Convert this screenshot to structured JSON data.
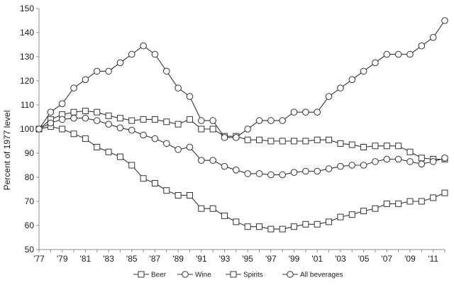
{
  "chart_data": {
    "type": "line",
    "ylabel": "Percent of 1977 level",
    "xlabel": "",
    "ylim": [
      50,
      150
    ],
    "yticks": [
      50,
      60,
      70,
      80,
      90,
      100,
      110,
      120,
      130,
      140,
      150
    ],
    "x": [
      1977,
      1978,
      1979,
      1980,
      1981,
      1982,
      1983,
      1984,
      1985,
      1986,
      1987,
      1988,
      1989,
      1990,
      1991,
      1992,
      1993,
      1994,
      1995,
      1996,
      1997,
      1998,
      1999,
      2000,
      2001,
      2002,
      2003,
      2004,
      2005,
      2006,
      2007,
      2008,
      2009,
      2010,
      2011,
      2012
    ],
    "xtick_labels": [
      "'77",
      "'79",
      "'81",
      "'83",
      "'85",
      "'87",
      "'89",
      "'91",
      "'93",
      "'95",
      "'97",
      "'99",
      "'01",
      "'03",
      "'05",
      "'07",
      "'09",
      "'11"
    ],
    "grid": false,
    "legend_position": "bottom",
    "series": [
      {
        "name": "Beer",
        "marker": "square",
        "values": [
          100,
          104,
          106,
          107,
          107.5,
          107,
          105.5,
          104.5,
          103.5,
          104,
          104,
          103,
          102,
          104,
          100,
          100,
          97,
          97,
          95.5,
          95.5,
          95,
          95,
          95,
          95,
          95.5,
          95.5,
          94,
          93.5,
          92.5,
          93,
          93,
          93,
          90.5,
          88,
          87.5,
          87.5
        ]
      },
      {
        "name": "Wine",
        "marker": "circle",
        "values": [
          100,
          107,
          110.5,
          117,
          120.5,
          124,
          124,
          127.5,
          131,
          134.5,
          131,
          124,
          117,
          113.5,
          103.5,
          103.5,
          96.5,
          96.5,
          100,
          103.5,
          103.5,
          103.5,
          107,
          107,
          107,
          113.5,
          117,
          120.5,
          124,
          127.5,
          131,
          131,
          131,
          134.5,
          138,
          145
        ]
      },
      {
        "name": "Spirits",
        "marker": "square",
        "values": [
          100,
          101,
          100,
          98,
          96,
          92.5,
          90.5,
          88.5,
          85,
          79.5,
          77.5,
          74.5,
          72.5,
          72.5,
          67,
          67,
          64,
          61.5,
          59.5,
          59.5,
          58.5,
          58.5,
          59.5,
          60.5,
          60.5,
          61.5,
          63.5,
          64.5,
          66,
          67,
          69,
          69,
          70,
          70,
          71.5,
          73.5
        ]
      },
      {
        "name": "All beverages",
        "marker": "circle",
        "values": [
          100,
          102.5,
          104,
          104.5,
          104.5,
          103.5,
          102,
          100.5,
          99.5,
          97.5,
          96,
          94,
          91.5,
          92.5,
          87,
          87,
          84.5,
          83,
          81.5,
          81.5,
          81,
          81,
          82,
          82.5,
          82.5,
          83.5,
          84.5,
          85,
          85,
          86.5,
          87.5,
          87.5,
          86.5,
          85.5,
          86.5,
          88
        ]
      }
    ]
  }
}
